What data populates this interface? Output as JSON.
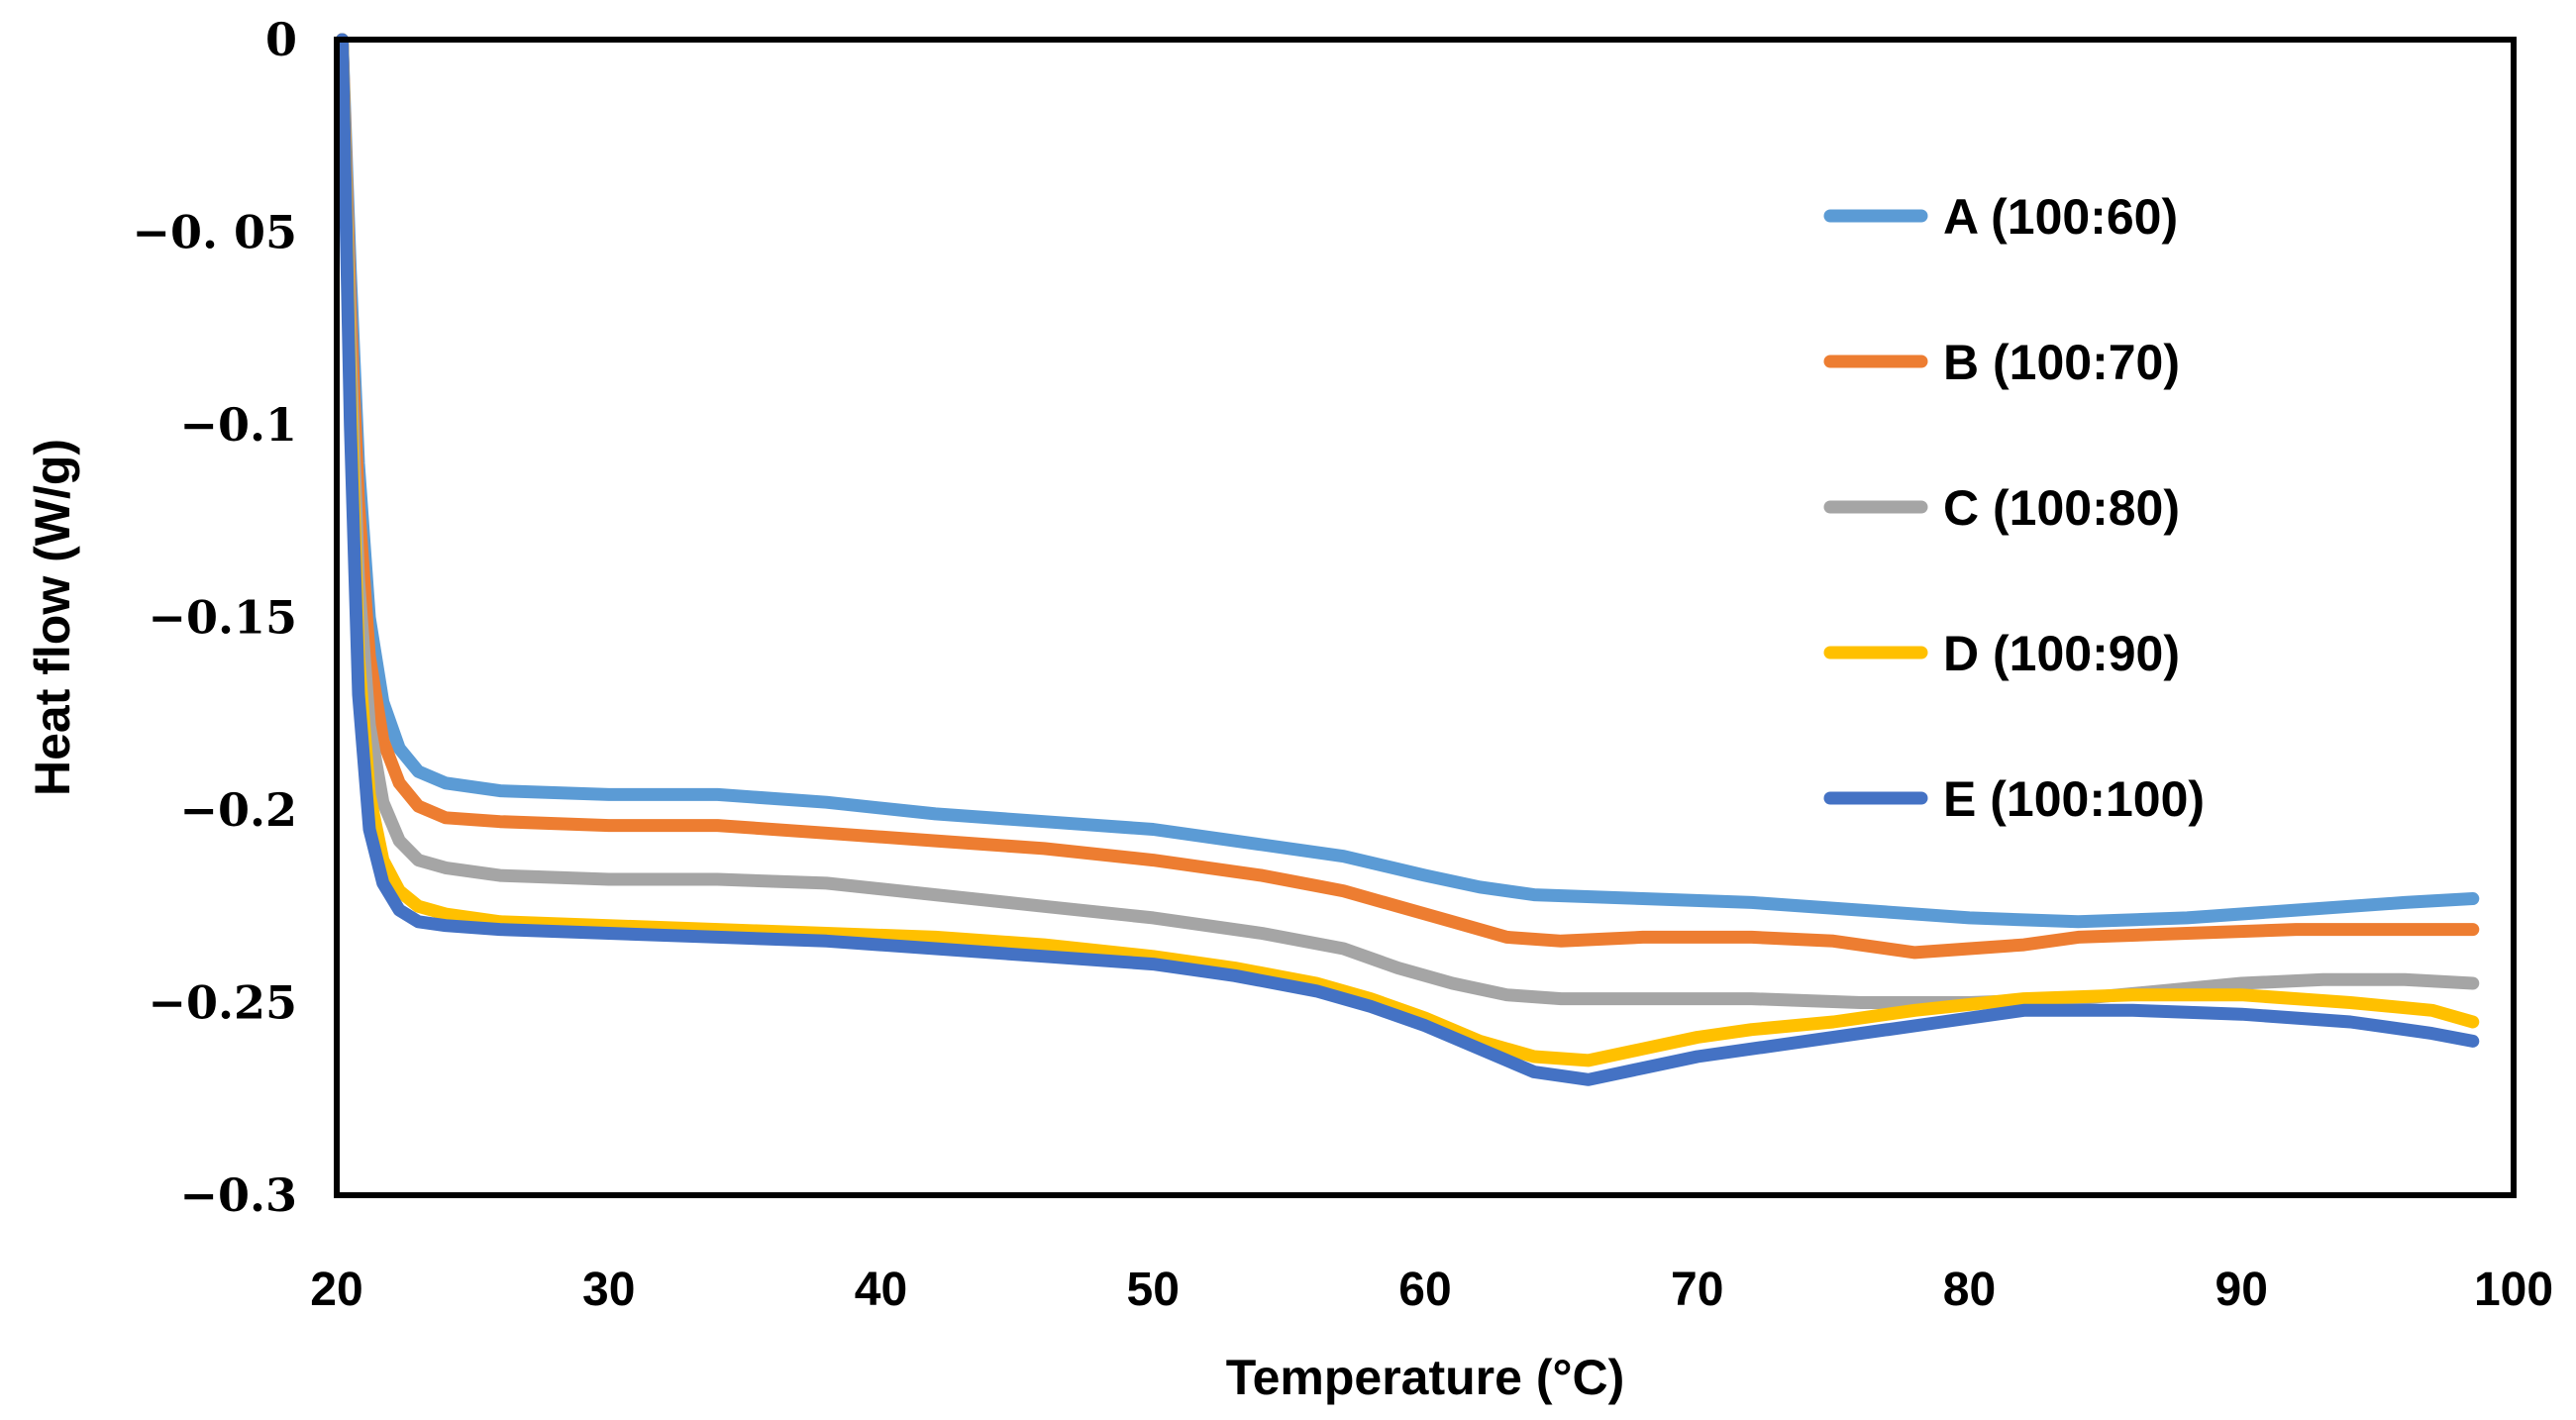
{
  "chart_data": {
    "type": "line",
    "xlabel": "Temperature (°C)",
    "ylabel": "Heat flow (W/g)",
    "xlim": [
      20,
      100
    ],
    "ylim": [
      -0.3,
      0
    ],
    "xticks": [
      20,
      30,
      40,
      50,
      60,
      70,
      80,
      90,
      100
    ],
    "xtick_labels": [
      "20",
      "30",
      "40",
      "50",
      "60",
      "70",
      "80",
      "90",
      "100"
    ],
    "yticks": [
      0,
      -0.05,
      -0.1,
      -0.15,
      -0.2,
      -0.25,
      -0.3
    ],
    "ytick_labels": [
      "0",
      "−0. 05",
      "−0.1",
      "−0.15",
      "−0.2",
      "−0.25",
      "−0.3"
    ],
    "grid": false,
    "legend_position": "right",
    "series": [
      {
        "name": "A (100:60)",
        "color": "#5B9BD5",
        "points": [
          [
            20.2,
            0
          ],
          [
            20.5,
            -0.06
          ],
          [
            20.8,
            -0.11
          ],
          [
            21.2,
            -0.15
          ],
          [
            21.7,
            -0.172
          ],
          [
            22.3,
            -0.184
          ],
          [
            23,
            -0.19
          ],
          [
            24,
            -0.193
          ],
          [
            26,
            -0.195
          ],
          [
            30,
            -0.196
          ],
          [
            34,
            -0.196
          ],
          [
            38,
            -0.198
          ],
          [
            42,
            -0.201
          ],
          [
            46,
            -0.203
          ],
          [
            50,
            -0.205
          ],
          [
            54,
            -0.209
          ],
          [
            57,
            -0.212
          ],
          [
            60,
            -0.217
          ],
          [
            62,
            -0.22
          ],
          [
            64,
            -0.222
          ],
          [
            68,
            -0.223
          ],
          [
            72,
            -0.224
          ],
          [
            76,
            -0.226
          ],
          [
            80,
            -0.228
          ],
          [
            84,
            -0.229
          ],
          [
            88,
            -0.228
          ],
          [
            92,
            -0.226
          ],
          [
            96,
            -0.224
          ],
          [
            98.5,
            -0.223
          ]
        ]
      },
      {
        "name": "B (100:70)",
        "color": "#ED7D31",
        "points": [
          [
            20.2,
            0
          ],
          [
            20.5,
            -0.07
          ],
          [
            20.8,
            -0.12
          ],
          [
            21.2,
            -0.16
          ],
          [
            21.7,
            -0.182
          ],
          [
            22.3,
            -0.193
          ],
          [
            23,
            -0.199
          ],
          [
            24,
            -0.202
          ],
          [
            26,
            -0.203
          ],
          [
            30,
            -0.204
          ],
          [
            34,
            -0.204
          ],
          [
            38,
            -0.206
          ],
          [
            42,
            -0.208
          ],
          [
            46,
            -0.21
          ],
          [
            50,
            -0.213
          ],
          [
            54,
            -0.217
          ],
          [
            57,
            -0.221
          ],
          [
            59,
            -0.225
          ],
          [
            61,
            -0.229
          ],
          [
            63,
            -0.233
          ],
          [
            65,
            -0.234
          ],
          [
            68,
            -0.233
          ],
          [
            72,
            -0.233
          ],
          [
            75,
            -0.234
          ],
          [
            78,
            -0.237
          ],
          [
            80,
            -0.236
          ],
          [
            82,
            -0.235
          ],
          [
            84,
            -0.233
          ],
          [
            88,
            -0.232
          ],
          [
            92,
            -0.231
          ],
          [
            96,
            -0.231
          ],
          [
            98.5,
            -0.231
          ]
        ]
      },
      {
        "name": "C (100:80)",
        "color": "#A5A5A5",
        "points": [
          [
            20.2,
            0
          ],
          [
            20.5,
            -0.08
          ],
          [
            20.8,
            -0.14
          ],
          [
            21.2,
            -0.178
          ],
          [
            21.7,
            -0.198
          ],
          [
            22.3,
            -0.208
          ],
          [
            23,
            -0.213
          ],
          [
            24,
            -0.215
          ],
          [
            26,
            -0.217
          ],
          [
            30,
            -0.218
          ],
          [
            34,
            -0.218
          ],
          [
            38,
            -0.219
          ],
          [
            42,
            -0.222
          ],
          [
            46,
            -0.225
          ],
          [
            50,
            -0.228
          ],
          [
            54,
            -0.232
          ],
          [
            57,
            -0.236
          ],
          [
            59,
            -0.241
          ],
          [
            61,
            -0.245
          ],
          [
            63,
            -0.248
          ],
          [
            65,
            -0.249
          ],
          [
            68,
            -0.249
          ],
          [
            72,
            -0.249
          ],
          [
            76,
            -0.25
          ],
          [
            80,
            -0.25
          ],
          [
            84,
            -0.249
          ],
          [
            87,
            -0.247
          ],
          [
            90,
            -0.245
          ],
          [
            93,
            -0.244
          ],
          [
            96,
            -0.244
          ],
          [
            98.5,
            -0.245
          ]
        ]
      },
      {
        "name": "D (100:90)",
        "color": "#FFC000",
        "points": [
          [
            20.2,
            0
          ],
          [
            20.5,
            -0.09
          ],
          [
            20.8,
            -0.16
          ],
          [
            21.2,
            -0.196
          ],
          [
            21.7,
            -0.213
          ],
          [
            22.3,
            -0.221
          ],
          [
            23,
            -0.225
          ],
          [
            24,
            -0.227
          ],
          [
            26,
            -0.229
          ],
          [
            30,
            -0.23
          ],
          [
            34,
            -0.231
          ],
          [
            38,
            -0.232
          ],
          [
            42,
            -0.233
          ],
          [
            46,
            -0.235
          ],
          [
            50,
            -0.238
          ],
          [
            53,
            -0.241
          ],
          [
            56,
            -0.245
          ],
          [
            58,
            -0.249
          ],
          [
            60,
            -0.254
          ],
          [
            62,
            -0.26
          ],
          [
            64,
            -0.264
          ],
          [
            66,
            -0.265
          ],
          [
            68,
            -0.262
          ],
          [
            70,
            -0.259
          ],
          [
            72,
            -0.257
          ],
          [
            75,
            -0.255
          ],
          [
            78,
            -0.252
          ],
          [
            82,
            -0.249
          ],
          [
            86,
            -0.248
          ],
          [
            90,
            -0.248
          ],
          [
            94,
            -0.25
          ],
          [
            97,
            -0.252
          ],
          [
            98.5,
            -0.255
          ]
        ]
      },
      {
        "name": "E (100:100)",
        "color": "#4472C4",
        "points": [
          [
            20.2,
            0
          ],
          [
            20.5,
            -0.1
          ],
          [
            20.8,
            -0.17
          ],
          [
            21.2,
            -0.205
          ],
          [
            21.7,
            -0.219
          ],
          [
            22.3,
            -0.226
          ],
          [
            23,
            -0.229
          ],
          [
            24,
            -0.23
          ],
          [
            26,
            -0.231
          ],
          [
            30,
            -0.232
          ],
          [
            34,
            -0.233
          ],
          [
            38,
            -0.234
          ],
          [
            42,
            -0.236
          ],
          [
            46,
            -0.238
          ],
          [
            50,
            -0.24
          ],
          [
            53,
            -0.243
          ],
          [
            56,
            -0.247
          ],
          [
            58,
            -0.251
          ],
          [
            60,
            -0.256
          ],
          [
            62,
            -0.262
          ],
          [
            64,
            -0.268
          ],
          [
            66,
            -0.27
          ],
          [
            68,
            -0.267
          ],
          [
            70,
            -0.264
          ],
          [
            73,
            -0.261
          ],
          [
            76,
            -0.258
          ],
          [
            79,
            -0.255
          ],
          [
            82,
            -0.252
          ],
          [
            86,
            -0.252
          ],
          [
            90,
            -0.253
          ],
          [
            94,
            -0.255
          ],
          [
            97,
            -0.258
          ],
          [
            98.5,
            -0.26
          ]
        ]
      }
    ]
  }
}
